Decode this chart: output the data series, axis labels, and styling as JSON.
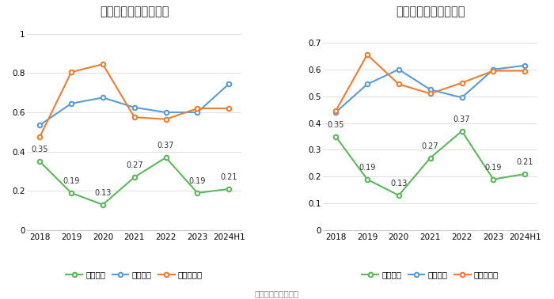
{
  "years": [
    "2018",
    "2019",
    "2020",
    "2021",
    "2022",
    "2023",
    "2024H1"
  ],
  "chart1": {
    "title": "历年流动比率变化情况",
    "main_label": "流动比率",
    "main_values": [
      0.35,
      0.19,
      0.13,
      0.27,
      0.37,
      0.19,
      0.21
    ],
    "industry_avg_label": "行业均值",
    "industry_avg_values": [
      0.535,
      0.645,
      0.675,
      0.625,
      0.6,
      0.6,
      0.745
    ],
    "industry_median_label": "行业中位数",
    "industry_median_values": [
      0.475,
      0.805,
      0.845,
      0.575,
      0.565,
      0.62,
      0.62
    ],
    "ylim": [
      0,
      1.05
    ],
    "yticks": [
      0,
      0.2,
      0.4,
      0.6,
      0.8,
      1
    ]
  },
  "chart2": {
    "title": "历年速动比率变化情况",
    "main_label": "速动比率",
    "main_values": [
      0.35,
      0.19,
      0.13,
      0.27,
      0.37,
      0.19,
      0.21
    ],
    "industry_avg_label": "行业均值",
    "industry_avg_values": [
      0.44,
      0.545,
      0.6,
      0.525,
      0.495,
      0.6,
      0.615
    ],
    "industry_median_label": "行业中位数",
    "industry_median_values": [
      0.445,
      0.655,
      0.545,
      0.51,
      0.55,
      0.595,
      0.595
    ],
    "ylim": [
      0,
      0.77
    ],
    "yticks": [
      0,
      0.1,
      0.2,
      0.3,
      0.4,
      0.5,
      0.6,
      0.7
    ]
  },
  "color_main": "#5cb85c",
  "color_avg": "#5b9bd5",
  "color_median": "#ed7d31",
  "footer": "数据来源：恒生聚源",
  "bg_color": "#ffffff",
  "grid_color": "#e0e0e0"
}
